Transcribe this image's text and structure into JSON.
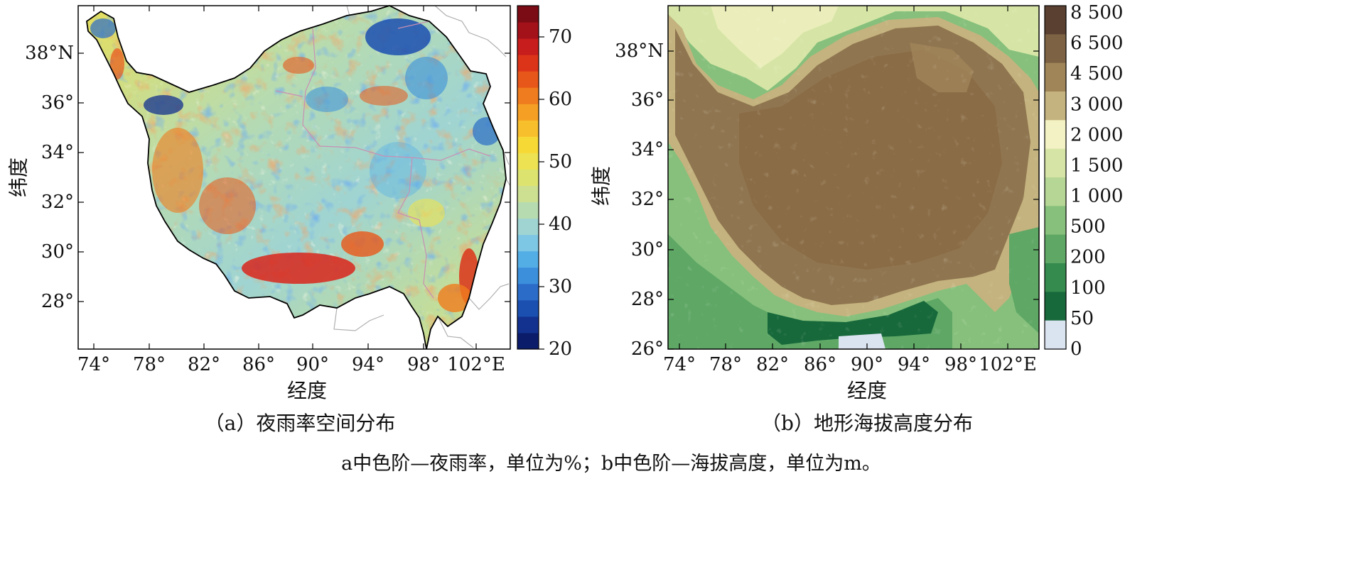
{
  "panel_a": {
    "y_axis_label": "纬度",
    "x_axis_label": "经度",
    "caption": "（a）夜雨率空间分布",
    "y_ticks": [
      "38°N",
      "36°",
      "34°",
      "32°",
      "30°",
      "28°"
    ],
    "x_ticks": [
      "74°",
      "78°",
      "82°",
      "86°",
      "90°",
      "94°",
      "98°",
      "102°E"
    ],
    "colorbar": {
      "unit": "%",
      "min": 20,
      "max": 75,
      "tick_labels": [
        "70",
        "60",
        "50",
        "40",
        "30",
        "20"
      ],
      "colors": [
        "#0b1c6b",
        "#13328f",
        "#1b4fb0",
        "#2a6cc8",
        "#3b8fdb",
        "#54aee6",
        "#7dc6e4",
        "#9fd4d2",
        "#b7dbb0",
        "#cde092",
        "#dde36f",
        "#ece252",
        "#f7d936",
        "#f8bf2d",
        "#f5a024",
        "#ef7c1e",
        "#e8571a",
        "#dc3419",
        "#c71d1c",
        "#a31119",
        "#7b0b14"
      ]
    }
  },
  "panel_b": {
    "y_axis_label": "纬度",
    "x_axis_label": "经度",
    "caption": "（b）地形海拔高度分布",
    "y_ticks": [
      "38°N",
      "36°",
      "34°",
      "32°",
      "30°",
      "28°",
      "26°"
    ],
    "x_ticks": [
      "74°",
      "78°",
      "82°",
      "86°",
      "90°",
      "94°",
      "98°",
      "102°E"
    ],
    "colorbar": {
      "unit": "m",
      "tick_labels": [
        "8 500",
        "6 500",
        "4 500",
        "3 000",
        "2 000",
        "1 500",
        "1 000",
        "500",
        "200",
        "100",
        "50",
        "0"
      ],
      "colors": [
        "#5a4030",
        "#7d6344",
        "#a08559",
        "#c4b37e",
        "#f3f2c4",
        "#d6e5a6",
        "#b5d694",
        "#86c07c",
        "#5ea765",
        "#358a4e",
        "#17693b",
        "#dae3f0"
      ]
    }
  },
  "footnote": "a中色阶—夜雨率，单位为%；b中色阶—海拔高度，单位为m。"
}
